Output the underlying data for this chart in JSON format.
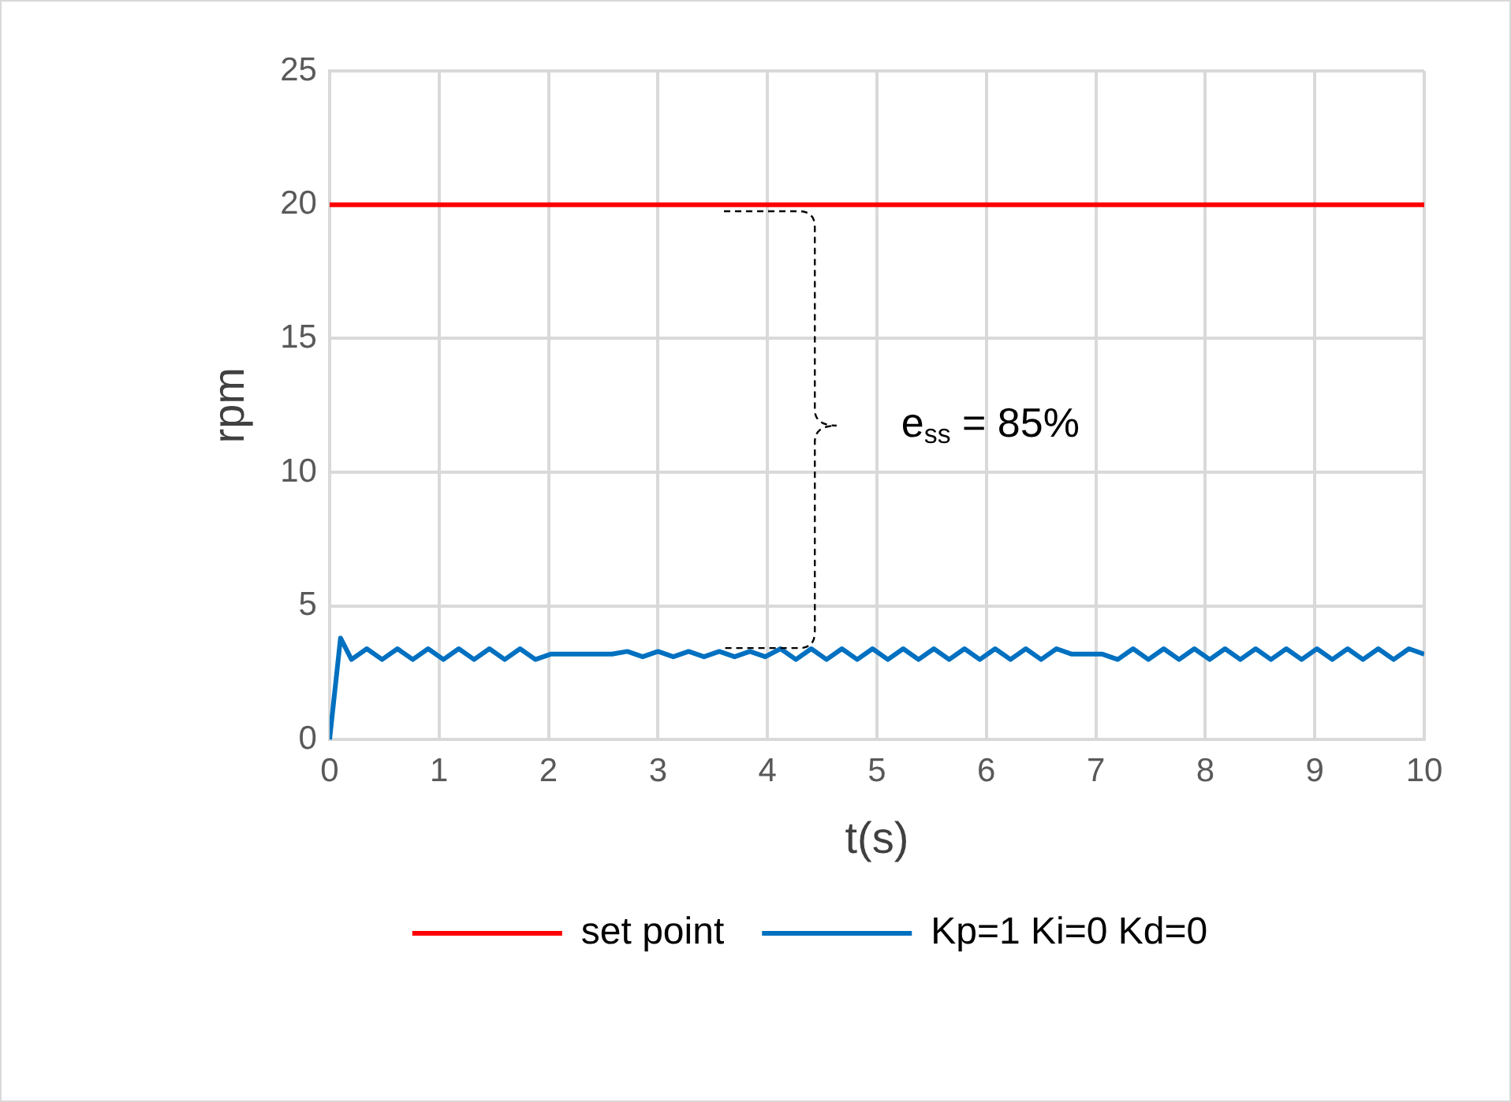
{
  "chart_data": {
    "type": "line",
    "xlabel": "t(s)",
    "ylabel": "rpm",
    "xlim": [
      0,
      10
    ],
    "xticks": [
      0,
      1,
      2,
      3,
      4,
      5,
      6,
      7,
      8,
      9,
      10
    ],
    "ylim": [
      0,
      25
    ],
    "yticks": [
      0,
      5,
      10,
      15,
      20,
      25
    ],
    "grid": true,
    "legend": "bottom",
    "marker": "none",
    "line_style": "solid",
    "annotations": [
      "e$_{ss}$ = 85%"
    ],
    "series": [
      {
        "name": "set point",
        "color": "#ff0000",
        "x": [
          0,
          10
        ],
        "values": [
          20,
          20
        ]
      },
      {
        "name": "Kp=1 Ki=0 Kd=0",
        "color": "#0070c0",
        "x": [
          0,
          0.1,
          0.2,
          0.34,
          0.48,
          0.62,
          0.76,
          0.9,
          1.04,
          1.18,
          1.32,
          1.46,
          1.6,
          1.74,
          1.88,
          2.02,
          2.16,
          2.3,
          2.44,
          2.58,
          2.72,
          2.86,
          3.0,
          3.14,
          3.28,
          3.42,
          3.56,
          3.7,
          3.84,
          3.98,
          4.12,
          4.26,
          4.4,
          4.54,
          4.68,
          4.82,
          4.96,
          5.1,
          5.24,
          5.38,
          5.52,
          5.66,
          5.8,
          5.94,
          6.08,
          6.22,
          6.36,
          6.5,
          6.64,
          6.78,
          6.92,
          7.06,
          7.2,
          7.34,
          7.48,
          7.62,
          7.76,
          7.9,
          8.04,
          8.18,
          8.32,
          8.46,
          8.6,
          8.74,
          8.88,
          9.02,
          9.16,
          9.3,
          9.44,
          9.58,
          9.72,
          9.86,
          10
        ],
        "values": [
          0,
          3.8,
          3.0,
          3.4,
          3.0,
          3.4,
          3.0,
          3.4,
          3.0,
          3.4,
          3.0,
          3.4,
          3.0,
          3.4,
          3.0,
          3.2,
          3.2,
          3.2,
          3.2,
          3.2,
          3.3,
          3.1,
          3.3,
          3.1,
          3.3,
          3.1,
          3.3,
          3.1,
          3.3,
          3.1,
          3.4,
          3.0,
          3.4,
          3.0,
          3.4,
          3.0,
          3.4,
          3.0,
          3.4,
          3.0,
          3.4,
          3.0,
          3.4,
          3.0,
          3.4,
          3.0,
          3.4,
          3.0,
          3.4,
          3.2,
          3.2,
          3.2,
          3.0,
          3.4,
          3.0,
          3.4,
          3.0,
          3.4,
          3.0,
          3.4,
          3.0,
          3.4,
          3.0,
          3.4,
          3.0,
          3.4,
          3.0,
          3.4,
          3.0,
          3.4,
          3.0,
          3.4,
          3.2
        ]
      }
    ]
  }
}
